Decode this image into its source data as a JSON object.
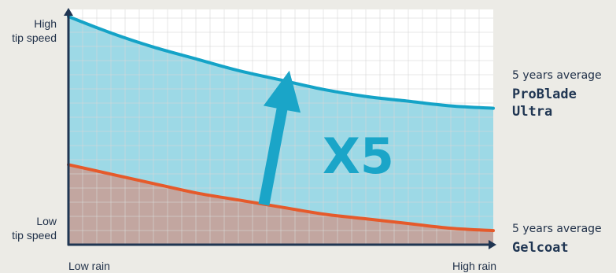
{
  "chart_data": {
    "type": "area",
    "x_label_low": "Low rain",
    "x_label_high": "High rain",
    "y_label_high": [
      "High",
      "tip speed"
    ],
    "y_label_low": [
      "Low",
      "tip speed"
    ],
    "xlim": [
      0,
      1
    ],
    "ylim": [
      0,
      1
    ],
    "grid": true,
    "x": [
      0,
      0.1,
      0.2,
      0.3,
      0.4,
      0.5,
      0.6,
      0.7,
      0.8,
      0.9,
      1.0
    ],
    "series": [
      {
        "legend_sub": "5 years average",
        "legend_name": [
          "ProBlade",
          "Ultra"
        ],
        "color": "#14a3c7",
        "fill": "#9dd9e6",
        "values": [
          0.97,
          0.9,
          0.84,
          0.79,
          0.74,
          0.7,
          0.66,
          0.63,
          0.61,
          0.59,
          0.58
        ]
      },
      {
        "legend_sub": "5 years average",
        "legend_name": [
          "Gelcoat"
        ],
        "color": "#e55a2b",
        "fill": "#c2a6a0",
        "values": [
          0.34,
          0.3,
          0.26,
          0.22,
          0.19,
          0.16,
          0.13,
          0.11,
          0.09,
          0.07,
          0.06
        ]
      }
    ],
    "annotation": {
      "text": "X5",
      "color": "#1aa5c8",
      "arrow_from": [
        0.46,
        0.17
      ],
      "arrow_to": [
        0.52,
        0.74
      ]
    },
    "colors": {
      "axis": "#1f3552",
      "grid": "#d8d8d8",
      "background": "#ffffff"
    }
  }
}
